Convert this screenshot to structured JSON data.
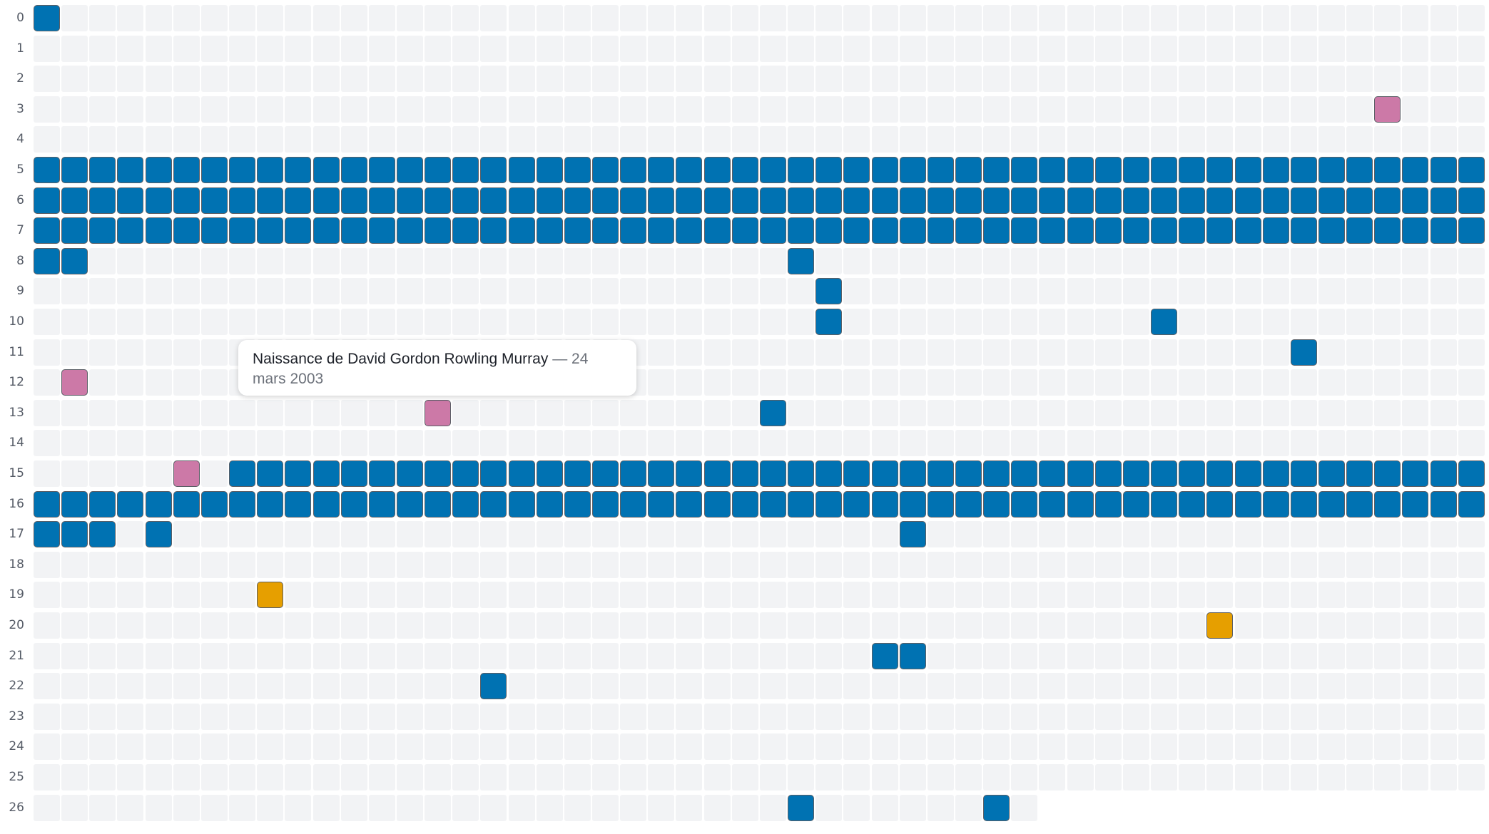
{
  "grid": {
    "columns": 52,
    "row_labels": [
      "0",
      "1",
      "2",
      "3",
      "4",
      "5",
      "6",
      "7",
      "8",
      "9",
      "10",
      "11",
      "12",
      "13",
      "14",
      "15",
      "16",
      "17",
      "18",
      "19",
      "20",
      "21",
      "22",
      "23",
      "24",
      "25",
      "26"
    ],
    "colors": {
      "blue": "#0072b2",
      "pink": "#cc79a7",
      "orange": "#e69f00",
      "empty": "#f2f3f5"
    },
    "rows": [
      {
        "row": 0,
        "cells": [
          {
            "col": 0,
            "color": "blue"
          }
        ]
      },
      {
        "row": 3,
        "cells": [
          {
            "col": 48,
            "color": "pink"
          }
        ]
      },
      {
        "row": 5,
        "full": "blue"
      },
      {
        "row": 6,
        "full": "blue"
      },
      {
        "row": 7,
        "full": "blue"
      },
      {
        "row": 8,
        "cells": [
          {
            "col": 0,
            "color": "blue"
          },
          {
            "col": 1,
            "color": "blue"
          },
          {
            "col": 27,
            "color": "blue"
          }
        ]
      },
      {
        "row": 9,
        "cells": [
          {
            "col": 28,
            "color": "blue"
          }
        ]
      },
      {
        "row": 10,
        "cells": [
          {
            "col": 28,
            "color": "blue"
          },
          {
            "col": 40,
            "color": "blue"
          }
        ]
      },
      {
        "row": 11,
        "cells": [
          {
            "col": 45,
            "color": "blue"
          }
        ]
      },
      {
        "row": 12,
        "cells": [
          {
            "col": 1,
            "color": "pink"
          }
        ]
      },
      {
        "row": 13,
        "cells": [
          {
            "col": 14,
            "color": "pink"
          },
          {
            "col": 26,
            "color": "blue"
          }
        ]
      },
      {
        "row": 15,
        "cells": [
          {
            "col": 5,
            "color": "pink"
          }
        ],
        "range": {
          "from": 7,
          "to": 51,
          "color": "blue"
        }
      },
      {
        "row": 16,
        "full": "blue"
      },
      {
        "row": 17,
        "cells": [
          {
            "col": 0,
            "color": "blue"
          },
          {
            "col": 1,
            "color": "blue"
          },
          {
            "col": 2,
            "color": "blue"
          },
          {
            "col": 4,
            "color": "blue"
          },
          {
            "col": 31,
            "color": "blue"
          }
        ]
      },
      {
        "row": 19,
        "cells": [
          {
            "col": 8,
            "color": "orange"
          }
        ]
      },
      {
        "row": 20,
        "cells": [
          {
            "col": 42,
            "color": "orange"
          }
        ]
      },
      {
        "row": 21,
        "cells": [
          {
            "col": 30,
            "color": "blue"
          },
          {
            "col": 31,
            "color": "blue"
          }
        ]
      },
      {
        "row": 22,
        "cells": [
          {
            "col": 16,
            "color": "blue"
          }
        ]
      },
      {
        "row": 26,
        "cells": [
          {
            "col": 27,
            "color": "blue"
          },
          {
            "col": 34,
            "color": "blue"
          }
        ],
        "last_col": 35
      }
    ]
  },
  "tooltip": {
    "title": "Naissance de David Gordon Rowling Murray",
    "date": " — 24 mars 2003"
  }
}
